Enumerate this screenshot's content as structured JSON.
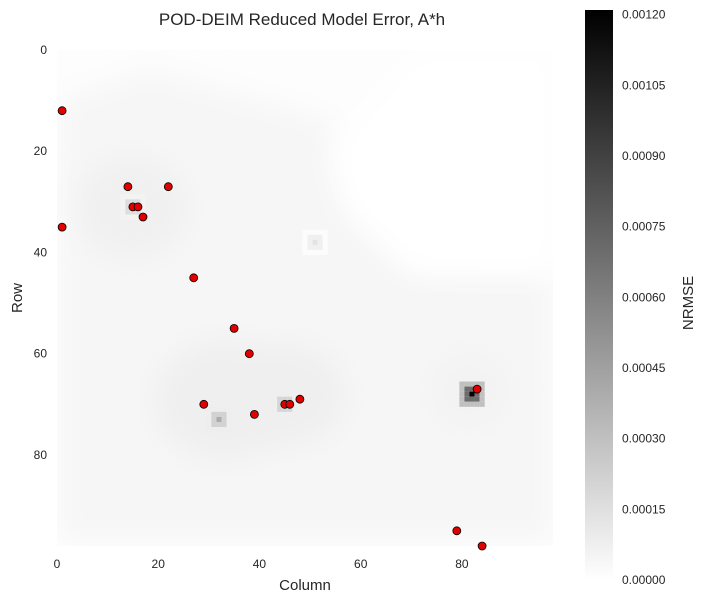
{
  "chart_data": {
    "type": "heatmap",
    "title": "POD-DEIM Reduced Model Error, A*h",
    "xlabel": "Column",
    "ylabel": "Row",
    "xlim": [
      0,
      98
    ],
    "ylim": [
      98,
      0
    ],
    "xticks": [
      0,
      20,
      40,
      60,
      80
    ],
    "yticks": [
      0,
      20,
      40,
      60,
      80
    ],
    "colormap": "gray_r",
    "grid": false,
    "colorbar": {
      "label": "NRMSE",
      "vmin": 0.0,
      "vmax": 0.00121,
      "ticks": [
        "0.00000",
        "0.00015",
        "0.00030",
        "0.00045",
        "0.00060",
        "0.00075",
        "0.00090",
        "0.00105",
        "0.00120"
      ]
    },
    "hotspots": [
      {
        "col": 15,
        "row": 31,
        "value": 0.00022
      },
      {
        "col": 32,
        "row": 73,
        "value": 0.00032
      },
      {
        "col": 45,
        "row": 70,
        "value": 0.0003
      },
      {
        "col": 82,
        "row": 68,
        "value": 0.0012
      },
      {
        "col": 51,
        "row": 38,
        "value": 6e-05
      }
    ],
    "series": [
      {
        "marker_color": "#e00000",
        "points": [
          {
            "x": 1,
            "y": 12
          },
          {
            "x": 14,
            "y": 27
          },
          {
            "x": 22,
            "y": 27
          },
          {
            "x": 15,
            "y": 31
          },
          {
            "x": 16,
            "y": 31
          },
          {
            "x": 17,
            "y": 33
          },
          {
            "x": 1,
            "y": 35
          },
          {
            "x": 27,
            "y": 45
          },
          {
            "x": 35,
            "y": 55
          },
          {
            "x": 38,
            "y": 60
          },
          {
            "x": 29,
            "y": 70
          },
          {
            "x": 39,
            "y": 72
          },
          {
            "x": 45,
            "y": 70
          },
          {
            "x": 46,
            "y": 70
          },
          {
            "x": 48,
            "y": 69
          },
          {
            "x": 83,
            "y": 67
          },
          {
            "x": 79,
            "y": 95
          },
          {
            "x": 84,
            "y": 98
          }
        ]
      }
    ]
  }
}
